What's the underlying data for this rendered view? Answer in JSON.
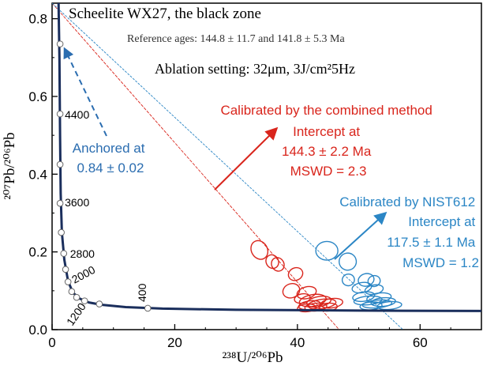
{
  "chart_data": {
    "type": "scatter",
    "title": "Scheelite WX27, the black zone",
    "subtitle": "Reference ages: 144.8 ± 11.7 and 141.8 ± 5.3 Ma",
    "ablation_setting": "Ablation setting: 32μm, 3J/cm²5Hz",
    "xlabel": "²³⁸U/²⁰⁶Pb",
    "ylabel": "²⁰⁷Pb/²⁰⁶Pb",
    "xlim": [
      0,
      70
    ],
    "ylim": [
      0,
      0.84
    ],
    "x_ticks": [
      0,
      20,
      40,
      60
    ],
    "y_ticks": [
      0.0,
      0.2,
      0.4,
      0.6,
      0.8
    ],
    "x_tick_labels": [
      "0",
      "20",
      "40",
      "60"
    ],
    "y_tick_labels": [
      "0.0",
      "0.2",
      "0.4",
      "0.6",
      "0.8"
    ],
    "concordia": {
      "color": "#1a2e5c",
      "age_labels": [
        {
          "label": "4400",
          "x": 1.3,
          "y": 0.555
        },
        {
          "label": "3600",
          "x": 1.3,
          "y": 0.33
        },
        {
          "label": "2800",
          "x": 1.9,
          "y": 0.197
        },
        {
          "label": "2000",
          "x": 2.6,
          "y": 0.122
        },
        {
          "label": "1200",
          "x": 2.0,
          "y": 0.0
        },
        {
          "label": "400",
          "x": 15.6,
          "y": 0.055
        }
      ],
      "marker_points": [
        {
          "x": 1.3,
          "y": 0.735
        },
        {
          "x": 1.3,
          "y": 0.555
        },
        {
          "x": 1.3,
          "y": 0.425
        },
        {
          "x": 1.3,
          "y": 0.325
        },
        {
          "x": 1.5,
          "y": 0.25
        },
        {
          "x": 1.9,
          "y": 0.196
        },
        {
          "x": 2.2,
          "y": 0.155
        },
        {
          "x": 2.6,
          "y": 0.123
        },
        {
          "x": 3.2,
          "y": 0.098
        },
        {
          "x": 4.0,
          "y": 0.083
        },
        {
          "x": 5.3,
          "y": 0.074
        },
        {
          "x": 7.7,
          "y": 0.066
        },
        {
          "x": 15.6,
          "y": 0.055
        }
      ]
    },
    "series": [
      {
        "name": "Calibrated by the combined method",
        "color": "#d9251c",
        "anchor": 0.84,
        "x_intercept": 46.8,
        "annotation": [
          "Calibrated by the combined method",
          "Intercept at",
          "144.3 ± 2.2 Ma",
          "MSWD = 2.3"
        ],
        "ellipses": [
          {
            "x": 33.8,
            "y": 0.205,
            "rx": 1.3,
            "ry": 0.025,
            "rot": 30
          },
          {
            "x": 35.9,
            "y": 0.175,
            "rx": 1.0,
            "ry": 0.018,
            "rot": 30
          },
          {
            "x": 36.8,
            "y": 0.168,
            "rx": 1.0,
            "ry": 0.018,
            "rot": 30
          },
          {
            "x": 39.7,
            "y": 0.143,
            "rx": 1.2,
            "ry": 0.016,
            "rot": 25
          },
          {
            "x": 39.0,
            "y": 0.1,
            "rx": 1.4,
            "ry": 0.018,
            "rot": 20
          },
          {
            "x": 41.5,
            "y": 0.095,
            "rx": 1.6,
            "ry": 0.015,
            "rot": 15
          },
          {
            "x": 40.8,
            "y": 0.08,
            "rx": 1.3,
            "ry": 0.012,
            "rot": 10
          },
          {
            "x": 42.5,
            "y": 0.075,
            "rx": 2.2,
            "ry": 0.015,
            "rot": 10
          },
          {
            "x": 43.5,
            "y": 0.072,
            "rx": 2.0,
            "ry": 0.013,
            "rot": 10
          },
          {
            "x": 44.0,
            "y": 0.066,
            "rx": 2.3,
            "ry": 0.012,
            "rot": 8
          },
          {
            "x": 42.0,
            "y": 0.063,
            "rx": 1.8,
            "ry": 0.011,
            "rot": 8
          },
          {
            "x": 45.6,
            "y": 0.068,
            "rx": 1.8,
            "ry": 0.012,
            "rot": 8
          },
          {
            "x": 43.0,
            "y": 0.058,
            "rx": 1.8,
            "ry": 0.01,
            "rot": 5
          },
          {
            "x": 45.0,
            "y": 0.058,
            "rx": 1.5,
            "ry": 0.01,
            "rot": 5
          },
          {
            "x": 41.5,
            "y": 0.056,
            "rx": 1.5,
            "ry": 0.01,
            "rot": 5
          }
        ]
      },
      {
        "name": "Calibrated by NIST612",
        "color": "#2b86c5",
        "anchor": 0.84,
        "x_intercept": 57.2,
        "annotation": [
          "Calibrated by NIST612",
          "Intercept at",
          "117.5 ± 1.1 Ma",
          "MSWD = 1.2"
        ],
        "ellipses": [
          {
            "x": 44.8,
            "y": 0.203,
            "rx": 1.8,
            "ry": 0.024,
            "rot": 0
          },
          {
            "x": 48.2,
            "y": 0.175,
            "rx": 1.4,
            "ry": 0.022,
            "rot": 10
          },
          {
            "x": 48.3,
            "y": 0.128,
            "rx": 1.0,
            "ry": 0.015,
            "rot": 15
          },
          {
            "x": 51.2,
            "y": 0.128,
            "rx": 1.3,
            "ry": 0.016,
            "rot": 15
          },
          {
            "x": 52.5,
            "y": 0.125,
            "rx": 1.0,
            "ry": 0.014,
            "rot": 15
          },
          {
            "x": 50.5,
            "y": 0.108,
            "rx": 1.6,
            "ry": 0.013,
            "rot": 10
          },
          {
            "x": 52.5,
            "y": 0.103,
            "rx": 1.5,
            "ry": 0.012,
            "rot": 10
          },
          {
            "x": 50.8,
            "y": 0.085,
            "rx": 1.8,
            "ry": 0.012,
            "rot": 8
          },
          {
            "x": 53.3,
            "y": 0.082,
            "rx": 2.0,
            "ry": 0.012,
            "rot": 8
          },
          {
            "x": 51.5,
            "y": 0.075,
            "rx": 2.3,
            "ry": 0.011,
            "rot": 5
          },
          {
            "x": 54.0,
            "y": 0.071,
            "rx": 2.0,
            "ry": 0.011,
            "rot": 5
          },
          {
            "x": 53.0,
            "y": 0.066,
            "rx": 2.4,
            "ry": 0.01,
            "rot": 5
          },
          {
            "x": 55.0,
            "y": 0.062,
            "rx": 2.0,
            "ry": 0.01,
            "rot": 5
          },
          {
            "x": 52.0,
            "y": 0.061,
            "rx": 1.8,
            "ry": 0.01,
            "rot": 5
          }
        ]
      }
    ],
    "anchor_annotation": {
      "lines": [
        "Anchored at",
        "0.84 ± 0.02"
      ],
      "color": "#2b6db0"
    }
  }
}
